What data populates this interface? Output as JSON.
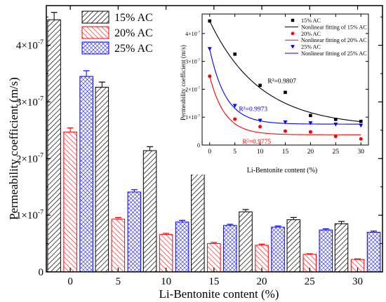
{
  "chart_data": [
    {
      "type": "bar",
      "xlabel": "Li-Bentonite content (%)",
      "ylabel": "Permeability coefficient (m/s)",
      "categories": [
        "0",
        "5",
        "10",
        "15",
        "20",
        "25",
        "30"
      ],
      "ylim": [
        0,
        4.7
      ],
      "y_exponent": -7,
      "y_ticks": [
        {
          "value": 0,
          "label": "0"
        },
        {
          "value": 1,
          "label": "1×10"
        },
        {
          "value": 2,
          "label": "2×10"
        },
        {
          "value": 3,
          "label": "3×10"
        },
        {
          "value": 4,
          "label": "4×10"
        }
      ],
      "tick_exponent_label": "-7",
      "legend_position": "top-left",
      "series": [
        {
          "name": "15% AC",
          "color": "#000000",
          "pattern": "diagonal-right",
          "values": [
            4.45,
            3.26,
            2.14,
            1.89,
            1.06,
            0.92,
            0.85
          ],
          "errors": [
            0.13,
            0.09,
            0.07,
            0.06,
            0.04,
            0.04,
            0.04
          ]
        },
        {
          "name": "20% AC",
          "color": "#ff0000",
          "pattern": "diagonal-left",
          "values": [
            2.47,
            0.93,
            0.66,
            0.5,
            0.47,
            0.31,
            0.22
          ],
          "errors": [
            0.07,
            0.03,
            0.02,
            0.02,
            0.02,
            0.01,
            0.01
          ]
        },
        {
          "name": "25% AC",
          "color": "#0000ff",
          "pattern": "crosshatch",
          "values": [
            3.45,
            1.41,
            0.88,
            0.82,
            0.79,
            0.74,
            0.7
          ],
          "errors": [
            0.1,
            0.04,
            0.03,
            0.02,
            0.02,
            0.02,
            0.02
          ]
        }
      ]
    },
    {
      "type": "scatter",
      "xlabel": "Li-Bentonite content (%)",
      "ylabel": "Permeability coefficient (m/s)",
      "xlim": [
        -1.5,
        31.5
      ],
      "ylim": [
        0,
        4.7
      ],
      "x_ticks": [
        0,
        5,
        10,
        15,
        20,
        25,
        30
      ],
      "y_ticks": [
        {
          "value": 0,
          "label": "0"
        },
        {
          "value": 1,
          "label": "1×10"
        },
        {
          "value": 2,
          "label": "2×10"
        },
        {
          "value": 3,
          "label": "3×10"
        },
        {
          "value": 4,
          "label": "4×10"
        }
      ],
      "tick_exponent_label": "-7",
      "legend_position": "top-right",
      "x": [
        0,
        5,
        10,
        15,
        20,
        25,
        30
      ],
      "series": [
        {
          "name": "15% AC",
          "fit_name": "Nonlinear fitting of 15% AC",
          "color": "#000000",
          "marker": "square",
          "values": [
            4.45,
            3.26,
            2.14,
            1.89,
            1.06,
            0.92,
            0.85
          ],
          "fit": {
            "y0": 0.65,
            "A": 3.8,
            "t": 10.0
          },
          "r2_label": "R²=0.9807",
          "r2_anchor": {
            "x": 11.5,
            "y": 2.22
          }
        },
        {
          "name": "20% AC",
          "fit_name": "Nonlinear fitting of 20% AC",
          "color": "#ff0000",
          "marker": "circle",
          "values": [
            2.47,
            0.93,
            0.66,
            0.5,
            0.47,
            0.31,
            0.22
          ],
          "fit": {
            "y0": 0.37,
            "A": 2.1,
            "t": 3.0
          },
          "r2_label": "R²=0.9775",
          "r2_anchor": {
            "x": 6.5,
            "y": 0.05
          }
        },
        {
          "name": "25% AC",
          "fit_name": "Nonlinear fitting of 25% AC",
          "color": "#0000ff",
          "marker": "triangle-down",
          "values": [
            3.45,
            1.41,
            0.88,
            0.82,
            0.79,
            0.74,
            0.7
          ],
          "fit": {
            "y0": 0.75,
            "A": 2.7,
            "t": 3.2
          },
          "r2_label": "R²=0.9973",
          "r2_anchor": {
            "x": 5.8,
            "y": 1.22
          }
        }
      ]
    }
  ]
}
